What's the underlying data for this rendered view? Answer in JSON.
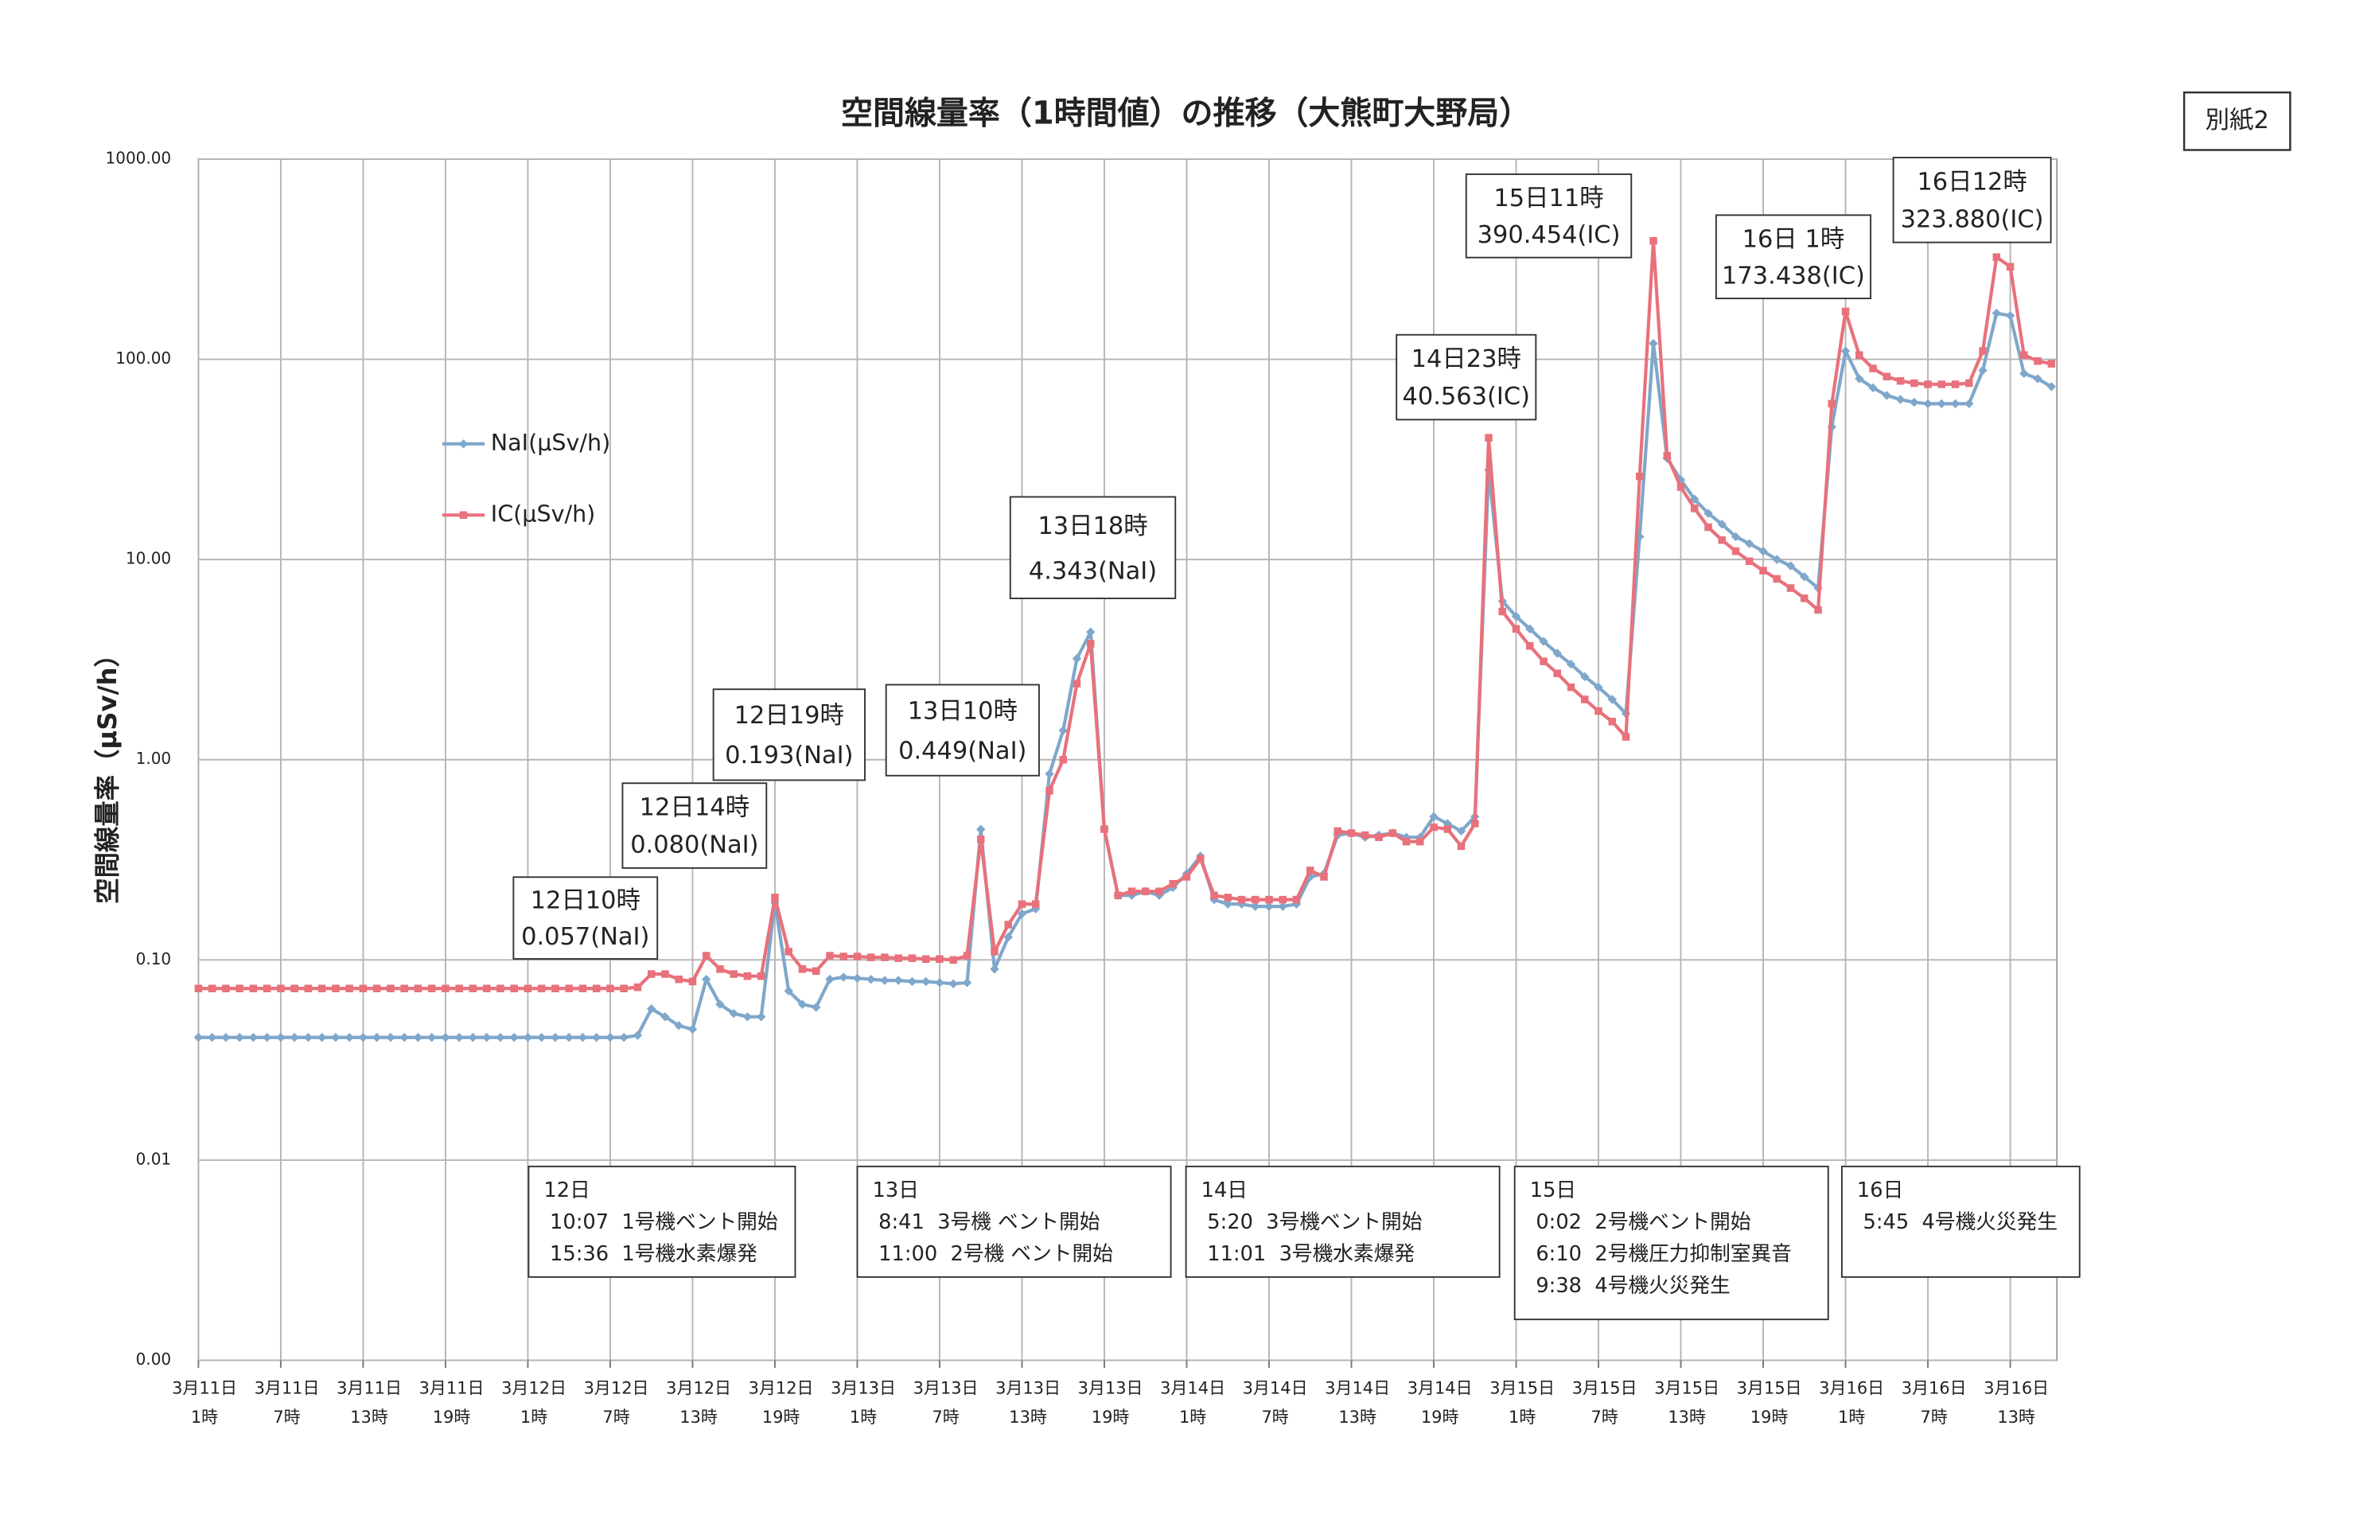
{
  "chart_data": {
    "type": "line",
    "title": "空間線量率（1時間値）の推移（大熊町大野局）",
    "badge": "別紙2",
    "y_label": "空間線量率（μSv/h）",
    "log_scale": true,
    "grid": true,
    "ylim": [
      0.001,
      1000
    ],
    "yticks": [
      {
        "value": 0.001,
        "label": "0.00"
      },
      0.01,
      {
        "value": 0.1,
        "label": "0.10"
      },
      {
        "value": 1,
        "label": "1.00"
      },
      {
        "value": 10,
        "label": "10.00"
      },
      {
        "value": 100,
        "label": "100.00"
      },
      {
        "value": 1000,
        "label": "1000.00"
      }
    ],
    "categories": [
      "3月11日\n1時",
      null,
      null,
      null,
      null,
      null,
      "3月11日\n7時",
      null,
      null,
      null,
      null,
      null,
      "3月11日\n13時",
      null,
      null,
      null,
      null,
      null,
      "3月11日\n19時",
      null,
      null,
      null,
      null,
      null,
      "3月12日\n1時",
      null,
      null,
      null,
      null,
      null,
      "3月12日\n7時",
      null,
      null,
      null,
      null,
      null,
      "3月12日\n13時",
      null,
      null,
      null,
      null,
      null,
      "3月12日\n19時",
      null,
      null,
      null,
      null,
      null,
      "3月13日\n1時",
      null,
      null,
      null,
      null,
      null,
      "3月13日\n7時",
      null,
      null,
      null,
      null,
      null,
      "3月13日\n13時",
      null,
      null,
      null,
      null,
      null,
      "3月13日\n19時",
      null,
      null,
      null,
      null,
      null,
      "3月14日\n1時",
      null,
      null,
      null,
      null,
      null,
      "3月14日\n7時",
      null,
      null,
      null,
      null,
      null,
      "3月14日\n13時",
      null,
      null,
      null,
      null,
      null,
      "3月14日\n19時",
      null,
      null,
      null,
      null,
      null,
      "3月15日\n1時",
      null,
      null,
      null,
      null,
      null,
      "3月15日\n7時",
      null,
      null,
      null,
      null,
      null,
      "3月15日\n13時",
      null,
      null,
      null,
      null,
      null,
      "3月15日\n19時",
      null,
      null,
      null,
      null,
      null,
      "3月16日\n1時",
      null,
      null,
      null,
      null,
      null,
      "3月16日\n7時",
      null,
      null,
      null,
      null,
      null,
      "3月16日\n13時",
      null,
      null,
      null
    ],
    "series": [
      {
        "name": "NaI(μSv/h)",
        "color": "#7fa7cb",
        "marker": "diamond",
        "values": [
          0.041,
          0.041,
          0.041,
          0.041,
          0.041,
          0.041,
          0.041,
          0.041,
          0.041,
          0.041,
          0.041,
          0.041,
          0.041,
          0.041,
          0.041,
          0.041,
          0.041,
          0.041,
          0.041,
          0.041,
          0.041,
          0.041,
          0.041,
          0.041,
          0.041,
          0.041,
          0.041,
          0.041,
          0.041,
          0.041,
          0.041,
          0.041,
          0.042,
          0.057,
          0.052,
          0.047,
          0.045,
          0.08,
          0.06,
          0.054,
          0.052,
          0.052,
          0.193,
          0.07,
          0.06,
          0.058,
          0.08,
          0.082,
          0.081,
          0.08,
          0.079,
          0.079,
          0.078,
          0.078,
          0.077,
          0.076,
          0.077,
          0.449,
          0.09,
          0.13,
          0.17,
          0.18,
          0.85,
          1.4,
          3.2,
          4.343,
          0.45,
          0.21,
          0.21,
          0.22,
          0.21,
          0.23,
          0.27,
          0.33,
          0.2,
          0.19,
          0.19,
          0.185,
          0.185,
          0.185,
          0.19,
          0.26,
          0.27,
          0.42,
          0.43,
          0.41,
          0.42,
          0.43,
          0.41,
          0.41,
          0.52,
          0.48,
          0.44,
          0.52,
          28,
          6.2,
          5.2,
          4.5,
          3.9,
          3.4,
          3.0,
          2.6,
          2.3,
          2.0,
          1.7,
          13,
          120,
          32,
          25,
          20,
          17,
          15,
          13,
          12,
          11,
          10,
          9.3,
          8.2,
          7.2,
          46,
          110,
          80,
          72,
          66,
          63,
          61,
          60,
          60,
          60,
          60,
          88,
          170,
          165,
          85,
          80,
          73
        ]
      },
      {
        "name": "IC(μSv/h)",
        "color": "#e8717b",
        "marker": "square",
        "values": [
          0.072,
          0.072,
          0.072,
          0.072,
          0.072,
          0.072,
          0.072,
          0.072,
          0.072,
          0.072,
          0.072,
          0.072,
          0.072,
          0.072,
          0.072,
          0.072,
          0.072,
          0.072,
          0.072,
          0.072,
          0.072,
          0.072,
          0.072,
          0.072,
          0.072,
          0.072,
          0.072,
          0.072,
          0.072,
          0.072,
          0.072,
          0.072,
          0.073,
          0.085,
          0.085,
          0.08,
          0.078,
          0.105,
          0.09,
          0.085,
          0.083,
          0.083,
          0.205,
          0.11,
          0.09,
          0.088,
          0.105,
          0.104,
          0.104,
          0.103,
          0.103,
          0.102,
          0.102,
          0.101,
          0.101,
          0.1,
          0.105,
          0.4,
          0.11,
          0.15,
          0.19,
          0.19,
          0.7,
          1.0,
          2.4,
          3.8,
          0.45,
          0.21,
          0.22,
          0.22,
          0.22,
          0.24,
          0.26,
          0.32,
          0.21,
          0.205,
          0.2,
          0.2,
          0.2,
          0.2,
          0.2,
          0.28,
          0.26,
          0.44,
          0.43,
          0.42,
          0.41,
          0.43,
          0.39,
          0.39,
          0.46,
          0.45,
          0.37,
          0.48,
          40.563,
          5.5,
          4.5,
          3.7,
          3.1,
          2.7,
          2.3,
          2.0,
          1.75,
          1.55,
          1.3,
          26,
          390.454,
          33,
          23,
          18,
          14.5,
          12.5,
          11,
          9.8,
          8.8,
          8,
          7.2,
          6.4,
          5.6,
          60,
          173.438,
          105,
          90,
          82,
          78,
          76,
          75,
          75,
          75,
          76,
          110,
          323.88,
          290,
          105,
          98,
          95
        ]
      }
    ],
    "annotations": [
      {
        "title": "12日10時",
        "text": "0.057(NaI)"
      },
      {
        "title": "12日14時",
        "text": "0.080(NaI)"
      },
      {
        "title": "12日19時",
        "text": "0.193(NaI)"
      },
      {
        "title": "13日10時",
        "text": "0.449(NaI)"
      },
      {
        "title": "13日18時",
        "text": "4.343(NaI)"
      },
      {
        "title": "14日23時",
        "text": "40.563(IC)"
      },
      {
        "title": "15日11時",
        "text": "390.454(IC)"
      },
      {
        "title": "16日 1時",
        "text": "173.438(IC)"
      },
      {
        "title": "16日12時",
        "text": "323.880(IC)"
      }
    ],
    "events": [
      [
        "12日",
        "10:07  1号機ベント開始",
        "15:36  1号機水素爆発"
      ],
      [
        "13日",
        "8:41  3号機 ベント開始",
        "11:00  2号機 ベント開始"
      ],
      [
        "14日",
        "5:20  3号機ベント開始",
        "11:01  3号機水素爆発"
      ],
      [
        "15日",
        "0:02  2号機ベント開始",
        "6:10  2号機圧力抑制室異音",
        "9:38  4号機火災発生"
      ],
      [
        "16日",
        "5:45  4号機火災発生"
      ]
    ]
  }
}
